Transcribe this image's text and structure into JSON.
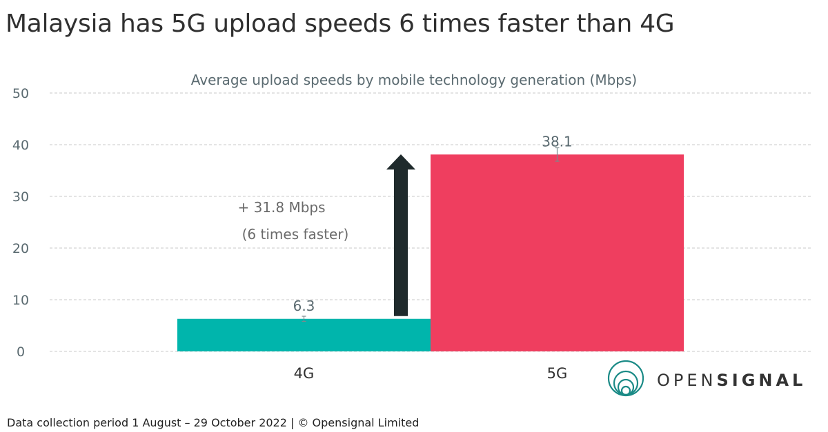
{
  "headline": "Malaysia has 5G upload speeds 6 times faster than 4G",
  "footer": "Data collection period 1 August – 29 October 2022  |  © Opensignal Limited",
  "logo": {
    "text_light": "OPEN",
    "text_bold": "SIGNAL",
    "icon": "opensignal-rings-icon"
  },
  "colors": {
    "bar_4g": "#00b5ac",
    "bar_5g": "#ef3e5f",
    "arrow": "#1f2a2c",
    "grid": "#c8c8c8",
    "text": "#5a6a70",
    "logo": "#1a8a86"
  },
  "annotation": {
    "line1": "+ 31.8 Mbps",
    "line2": "(6 times faster)",
    "from": 6.3,
    "to": 38.1
  },
  "chart_data": {
    "type": "bar",
    "title": "Average upload speeds by mobile technology generation (Mbps)",
    "categories": [
      "4G",
      "5G"
    ],
    "values": [
      6.3,
      38.1
    ],
    "value_labels": [
      "6.3",
      "38.1"
    ],
    "ylim": [
      0,
      50
    ],
    "yticks": [
      0,
      10,
      20,
      30,
      40,
      50
    ],
    "grid": true,
    "error_bars": [
      [
        5.8,
        6.8
      ],
      [
        36.8,
        39.4
      ]
    ]
  }
}
